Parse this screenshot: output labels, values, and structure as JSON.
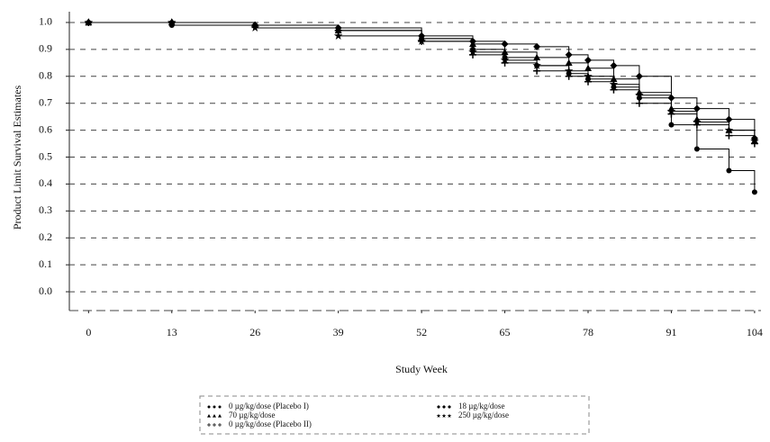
{
  "chart_data": {
    "type": "line",
    "step": true,
    "y_label": "Product Limit Survival Estimates",
    "x_label": "Study Week",
    "x": [
      0,
      13,
      26,
      39,
      52,
      60,
      65,
      70,
      75,
      78,
      82,
      86,
      91,
      95,
      100,
      104
    ],
    "xlim": [
      -3,
      105
    ],
    "xticks": [
      0,
      13,
      26,
      39,
      52,
      65,
      78,
      91,
      104
    ],
    "ylim": [
      -0.07,
      1.04
    ],
    "yticks": [
      {
        "value": 0,
        "label": "0.0"
      },
      0.1,
      0.2,
      0.3,
      0.4,
      0.5,
      0.6,
      0.7,
      0.8,
      0.9,
      {
        "value": 1,
        "label": "1.0"
      }
    ],
    "grid": true,
    "series": [
      {
        "name": "0 µg/kg/dose (Placebo I)",
        "color": "#000000",
        "marker": "circle",
        "values": [
          1,
          0.99,
          0.99,
          0.97,
          0.94,
          0.9,
          0.87,
          0.84,
          0.81,
          0.79,
          0.76,
          0.72,
          0.62,
          0.53,
          0.45,
          0.37
        ]
      },
      {
        "name": "70 µg/kg/dose",
        "color": "#000000",
        "marker": "triangle",
        "values": [
          1,
          1,
          0.99,
          0.97,
          0.94,
          0.92,
          0.89,
          0.87,
          0.85,
          0.83,
          0.79,
          0.74,
          0.68,
          0.64,
          0.6,
          0.56
        ]
      },
      {
        "name": "0 µg/kg/dose (Placebo II)",
        "color": "#000000",
        "marker": "plus",
        "values": [
          1,
          1,
          0.99,
          0.97,
          0.93,
          0.88,
          0.85,
          0.82,
          0.8,
          0.78,
          0.75,
          0.7,
          0.66,
          0.62,
          0.58,
          0.55
        ]
      },
      {
        "name": "18 µg/kg/dose",
        "color": "#000000",
        "marker": "diamond",
        "values": [
          1,
          1,
          0.99,
          0.98,
          0.95,
          0.93,
          0.92,
          0.91,
          0.88,
          0.86,
          0.84,
          0.8,
          0.72,
          0.68,
          0.64,
          0.57
        ]
      },
      {
        "name": "250 µg/kg/dose",
        "color": "#000000",
        "marker": "star",
        "values": [
          1,
          1,
          0.98,
          0.95,
          0.93,
          0.89,
          0.86,
          0.84,
          0.82,
          0.8,
          0.77,
          0.73,
          0.67,
          0.63,
          0.6,
          0.56
        ]
      }
    ]
  }
}
